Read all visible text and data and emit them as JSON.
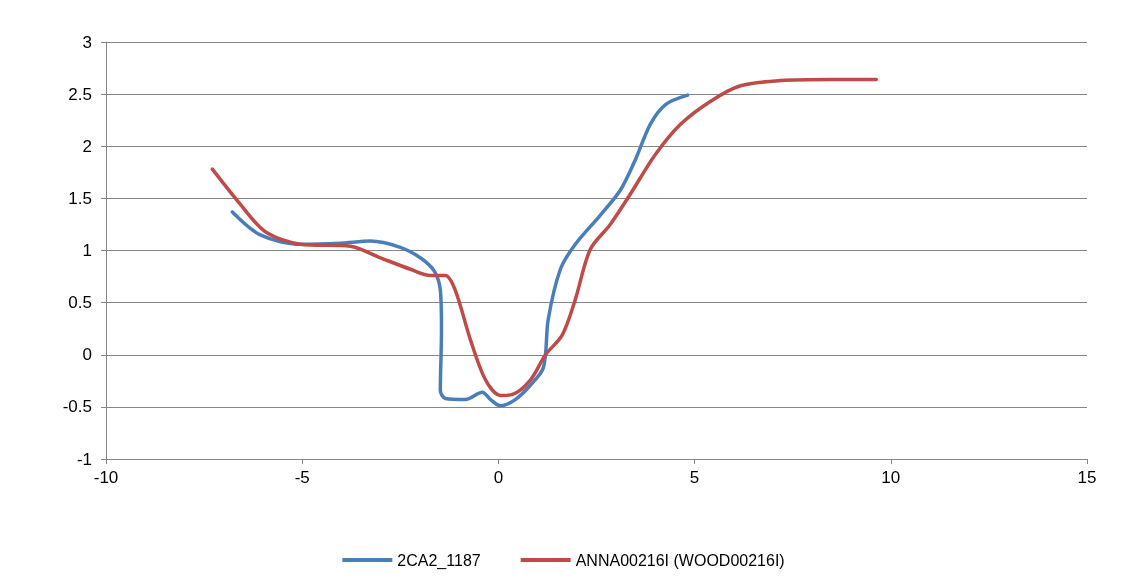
{
  "chart_data": {
    "type": "line",
    "xlim": [
      -10,
      15
    ],
    "xticks": [
      -10,
      -5,
      0,
      5,
      10,
      15
    ],
    "ylim": [
      -1,
      3
    ],
    "yticks": [
      -1,
      -0.5,
      0,
      0.5,
      1,
      1.5,
      2,
      2.5,
      3
    ],
    "grid": "y",
    "legend": "bottom",
    "marker": "none",
    "line_style": "solid",
    "series": [
      {
        "name": "2CA2_1187",
        "color": "#4a7ebb",
        "x": [
          -6.78,
          -6.07,
          -5.05,
          -4.03,
          -3.26,
          -2.5,
          -1.99,
          -1.63,
          -1.48,
          -1.45,
          -1.48,
          -1.35,
          -0.84,
          -0.41,
          -0.2,
          0.05,
          0.43,
          0.82,
          1.15,
          1.27,
          1.58,
          1.96,
          2.6,
          3.11,
          3.49,
          3.87,
          4.26,
          4.82
        ],
        "values": [
          1.37,
          1.15,
          1.06,
          1.07,
          1.09,
          1.03,
          0.93,
          0.8,
          0.62,
          0.24,
          -0.34,
          -0.42,
          -0.43,
          -0.36,
          -0.43,
          -0.49,
          -0.43,
          -0.29,
          -0.12,
          0.34,
          0.82,
          1.06,
          1.34,
          1.58,
          1.87,
          2.21,
          2.4,
          2.49
        ]
      },
      {
        "name": "ANNA00216I (WOOD00216I)",
        "color": "#be4b48",
        "x": [
          -7.29,
          -6.57,
          -5.94,
          -5.05,
          -3.77,
          -3.01,
          -2.24,
          -1.73,
          -1.35,
          -1.1,
          -0.71,
          -0.33,
          0.05,
          0.36,
          0.82,
          1.2,
          1.63,
          1.96,
          2.34,
          2.85,
          3.36,
          4.0,
          4.64,
          5.4,
          6.17,
          7.19,
          8.46,
          9.63
        ],
        "values": [
          1.78,
          1.44,
          1.18,
          1.06,
          1.04,
          0.93,
          0.82,
          0.76,
          0.76,
          0.62,
          0.14,
          -0.24,
          -0.39,
          -0.38,
          -0.24,
          0.0,
          0.19,
          0.53,
          1.01,
          1.25,
          1.54,
          1.92,
          2.21,
          2.43,
          2.58,
          2.63,
          2.64,
          2.64
        ]
      }
    ]
  }
}
